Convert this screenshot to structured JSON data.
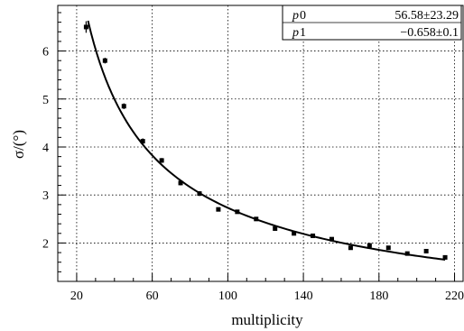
{
  "chart_data": {
    "type": "scatter",
    "xlabel": "multiplicity",
    "ylabel": "σ/(°)",
    "xlim": [
      10,
      225
    ],
    "ylim": [
      1.2,
      6.95
    ],
    "xticks": [
      20,
      60,
      100,
      140,
      180,
      220
    ],
    "yticks": [
      2,
      3,
      4,
      5,
      6
    ],
    "grid": true,
    "series": [
      {
        "marker": "square",
        "x": [
          25,
          35,
          45,
          55,
          65,
          75,
          85,
          95,
          105,
          115,
          125,
          135,
          145,
          155,
          165,
          175,
          185,
          195,
          205,
          215
        ],
        "y": [
          6.5,
          5.8,
          4.85,
          4.12,
          3.72,
          3.25,
          3.03,
          2.7,
          2.65,
          2.5,
          2.3,
          2.2,
          2.15,
          2.08,
          1.9,
          1.95,
          1.9,
          1.78,
          1.83,
          1.7
        ],
        "yerr": [
          0.12,
          0.06,
          0.06,
          0.06,
          0.05,
          0.05,
          0.05,
          0.04,
          0.04,
          0.04,
          0.04,
          0.04,
          0.04,
          0.04,
          0.04,
          0.04,
          0.04,
          0.04,
          0.04,
          0.04
        ]
      }
    ],
    "fit": {
      "function": "p0*x^p1",
      "x_range": [
        26,
        215
      ],
      "p0": 56.58,
      "p1": -0.658
    },
    "stats_box": {
      "placement": "top-right",
      "rows": [
        {
          "name": "p",
          "sub": "0",
          "value": "56.58±23.29"
        },
        {
          "name": "p",
          "sub": "1",
          "value": "−0.658±0.1"
        }
      ]
    }
  }
}
